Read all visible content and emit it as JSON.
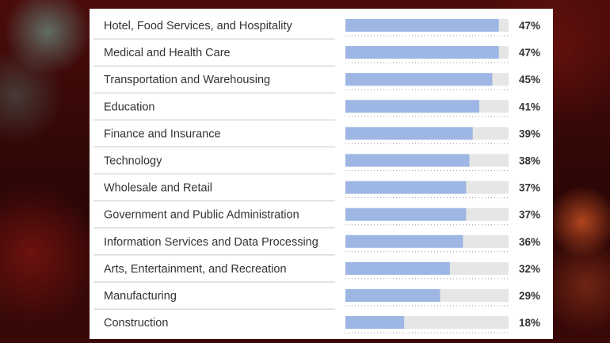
{
  "chart_data": {
    "type": "bar",
    "orientation": "horizontal",
    "categories": [
      "Hotel, Food Services, and Hospitality",
      "Medical and Health Care",
      "Transportation and Warehousing",
      "Education",
      "Finance and Insurance",
      "Technology",
      "Wholesale and Retail",
      "Government and Public Administration",
      "Information Services and Data Processing",
      "Arts, Entertainment, and Recreation",
      "Manufacturing",
      "Construction"
    ],
    "values": [
      47,
      47,
      45,
      41,
      39,
      38,
      37,
      37,
      36,
      32,
      29,
      18
    ],
    "value_labels": [
      "47%",
      "47%",
      "45%",
      "41%",
      "39%",
      "38%",
      "37%",
      "37%",
      "36%",
      "32%",
      "29%",
      "18%"
    ],
    "xlim": [
      0,
      50
    ],
    "grid": false,
    "colors": {
      "bar": "#9db6e4",
      "track": "#e6e6e6",
      "text": "#333333"
    }
  }
}
